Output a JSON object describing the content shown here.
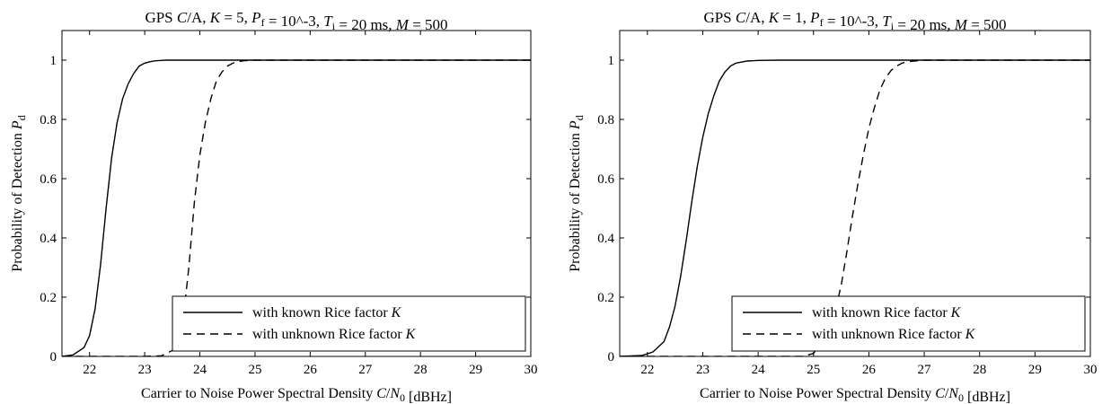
{
  "chart_data": [
    {
      "type": "line",
      "title": "GPS C/A, K = 5, P_f = 10^-3, T_i = 20 ms, M = 500",
      "xlabel": "Carrier to Noise Power Spectral Density C/N_0 [dBHz]",
      "ylabel": "Probability of Detection P_d",
      "xlim": [
        21.5,
        30
      ],
      "ylim": [
        0,
        1.1
      ],
      "xticks": [
        22,
        23,
        24,
        25,
        26,
        27,
        28,
        29,
        30
      ],
      "yticks": [
        0,
        0.2,
        0.4,
        0.6,
        0.8,
        1
      ],
      "grid": false,
      "legend_position": "bottom-right",
      "series": [
        {
          "name": "with known Rice factor K",
          "style": "solid",
          "x": [
            21.5,
            21.7,
            21.9,
            22.0,
            22.1,
            22.2,
            22.3,
            22.4,
            22.5,
            22.6,
            22.7,
            22.8,
            22.9,
            23.0,
            23.1,
            23.2,
            23.3,
            23.4,
            23.6,
            24.0,
            30.0
          ],
          "y": [
            0.0,
            0.005,
            0.03,
            0.07,
            0.16,
            0.31,
            0.5,
            0.67,
            0.79,
            0.87,
            0.92,
            0.955,
            0.98,
            0.99,
            0.995,
            0.998,
            0.999,
            1.0,
            1.0,
            1.0,
            1.0
          ]
        },
        {
          "name": "with unknown Rice factor K",
          "style": "dashed",
          "x": [
            21.5,
            23.0,
            23.3,
            23.5,
            23.6,
            23.7,
            23.8,
            23.9,
            24.0,
            24.1,
            24.2,
            24.3,
            24.4,
            24.5,
            24.6,
            24.7,
            24.8,
            25.0,
            30.0
          ],
          "y": [
            0.0,
            0.0,
            0.002,
            0.02,
            0.06,
            0.13,
            0.3,
            0.52,
            0.68,
            0.79,
            0.87,
            0.93,
            0.96,
            0.98,
            0.99,
            0.995,
            0.998,
            1.0,
            1.0
          ]
        }
      ]
    },
    {
      "type": "line",
      "title": "GPS C/A, K = 1, P_f = 10^-3, T_i = 20 ms, M = 500",
      "xlabel": "Carrier to Noise Power Spectral Density C/N_0 [dBHz]",
      "ylabel": "Probability of Detection P_d",
      "xlim": [
        21.5,
        30
      ],
      "ylim": [
        0,
        1.1
      ],
      "xticks": [
        22,
        23,
        24,
        25,
        26,
        27,
        28,
        29,
        30
      ],
      "yticks": [
        0,
        0.2,
        0.4,
        0.6,
        0.8,
        1
      ],
      "grid": false,
      "legend_position": "bottom-right",
      "series": [
        {
          "name": "with known Rice factor K",
          "style": "solid",
          "x": [
            21.5,
            21.9,
            22.1,
            22.3,
            22.4,
            22.5,
            22.6,
            22.7,
            22.8,
            22.9,
            23.0,
            23.1,
            23.2,
            23.3,
            23.4,
            23.5,
            23.6,
            23.8,
            24.0,
            24.4,
            30.0
          ],
          "y": [
            0.0,
            0.003,
            0.015,
            0.05,
            0.1,
            0.17,
            0.27,
            0.39,
            0.52,
            0.64,
            0.74,
            0.82,
            0.88,
            0.93,
            0.96,
            0.98,
            0.99,
            0.997,
            0.999,
            1.0,
            1.0
          ]
        },
        {
          "name": "with unknown Rice factor K",
          "style": "dashed",
          "x": [
            21.5,
            24.8,
            25.0,
            25.2,
            25.4,
            25.5,
            25.6,
            25.7,
            25.8,
            25.9,
            26.0,
            26.1,
            26.2,
            26.3,
            26.4,
            26.5,
            26.6,
            26.7,
            27.0,
            30.0
          ],
          "y": [
            0.0,
            0.0,
            0.01,
            0.06,
            0.16,
            0.24,
            0.35,
            0.47,
            0.58,
            0.68,
            0.77,
            0.84,
            0.9,
            0.94,
            0.965,
            0.98,
            0.99,
            0.995,
            1.0,
            1.0
          ]
        }
      ]
    }
  ]
}
